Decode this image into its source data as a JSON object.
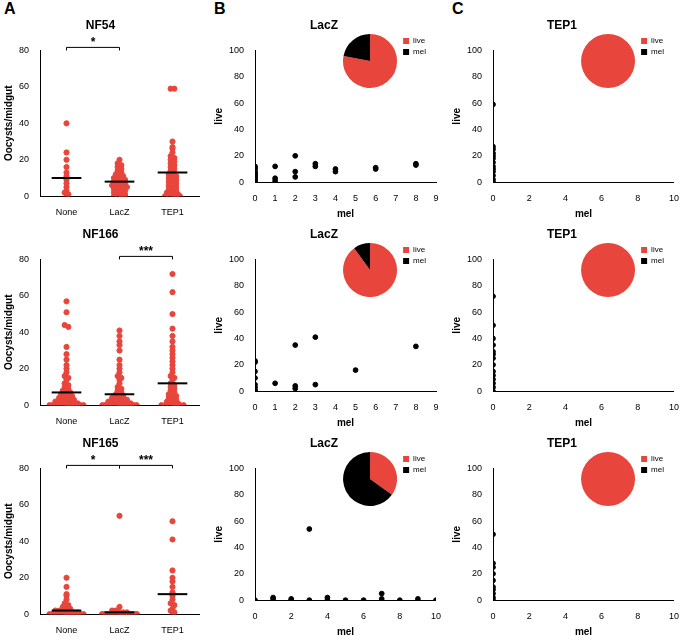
{
  "panel_labels": [
    "A",
    "B",
    "C"
  ],
  "chart_data": [
    {
      "type": "strip",
      "title": "NF54",
      "y_label": "Oocysts/midgut",
      "categories": [
        "None",
        "LacZ",
        "TEP1"
      ],
      "values": [
        [
          40,
          24,
          20,
          16,
          13,
          11,
          9,
          7,
          5,
          3,
          2,
          1,
          0
        ],
        [
          20,
          18,
          17,
          16,
          15,
          14,
          13,
          12,
          12,
          11,
          10,
          10,
          9,
          9,
          8,
          8,
          7,
          7,
          6,
          6,
          5,
          5,
          5,
          4,
          4,
          3,
          3,
          2,
          2,
          1,
          1,
          0,
          0,
          0,
          0
        ],
        [
          59,
          59,
          30,
          27,
          26,
          24,
          22,
          21,
          20,
          19,
          18,
          17,
          16,
          15,
          14,
          13,
          12,
          12,
          11,
          10,
          10,
          9,
          8,
          8,
          7,
          6,
          5,
          5,
          4,
          3,
          3,
          2,
          2,
          1,
          1,
          0,
          0,
          0,
          0,
          0
        ]
      ],
      "means": [
        10,
        8,
        13
      ],
      "color": "#e8453c",
      "ylim": [
        0,
        80
      ],
      "yticks": [
        0,
        20,
        40,
        60,
        80
      ],
      "grid": false,
      "significance": [
        {
          "from": "None",
          "to": "LacZ",
          "label": "*"
        }
      ]
    },
    {
      "type": "scatter",
      "title": "LacZ",
      "x_label": "mel",
      "y_label": "live",
      "x": [
        0,
        0,
        0,
        0,
        0,
        0,
        0,
        0,
        0,
        0,
        0,
        0,
        1,
        1,
        1,
        2,
        2,
        2,
        3,
        3,
        4,
        4,
        6,
        6,
        8,
        8
      ],
      "y": [
        0,
        1,
        2,
        3,
        4,
        5,
        6,
        7,
        8,
        10,
        11,
        12,
        12,
        3,
        1,
        20,
        8,
        4,
        14,
        12,
        10,
        8,
        11,
        10,
        14,
        13
      ],
      "color": "#000000",
      "xlim": [
        0,
        9
      ],
      "xticks": [
        0,
        1,
        2,
        3,
        4,
        5,
        6,
        7,
        8,
        9
      ],
      "ylim": [
        0,
        100
      ],
      "yticks": [
        0,
        20,
        40,
        60,
        80,
        100
      ],
      "grid": false,
      "inset": {
        "type": "pie",
        "categories": [
          "live",
          "mel"
        ],
        "values": [
          78,
          22
        ],
        "colors": [
          "#e8453c",
          "#000000"
        ],
        "legend": "right"
      }
    },
    {
      "type": "scatter",
      "title": "TEP1",
      "x_label": "mel",
      "y_label": "live",
      "x": [
        0,
        0,
        0,
        0,
        0,
        0,
        0,
        0,
        0,
        0,
        0,
        0,
        0
      ],
      "y": [
        0,
        2,
        5,
        8,
        10,
        12,
        15,
        18,
        20,
        22,
        25,
        27,
        59
      ],
      "color": "#000000",
      "xlim": [
        0,
        10
      ],
      "xticks": [
        0,
        2,
        4,
        6,
        8,
        10
      ],
      "ylim": [
        0,
        100
      ],
      "yticks": [
        0,
        20,
        40,
        60,
        80,
        100
      ],
      "grid": false,
      "inset": {
        "type": "pie",
        "categories": [
          "live",
          "mel"
        ],
        "values": [
          100,
          0
        ],
        "colors": [
          "#e8453c",
          "#000000"
        ],
        "legend": "right"
      }
    },
    {
      "type": "strip",
      "title": "NF166",
      "y_label": "Oocysts/midgut",
      "categories": [
        "None",
        "LacZ",
        "TEP1"
      ],
      "values": [
        [
          57,
          51,
          44,
          43,
          32,
          28,
          25,
          22,
          20,
          18,
          16,
          15,
          14,
          12,
          11,
          10,
          9,
          8,
          8,
          7,
          6,
          6,
          5,
          5,
          4,
          4,
          3,
          3,
          3,
          2,
          2,
          2,
          1,
          1,
          1,
          1,
          0,
          0,
          0,
          0,
          0,
          0,
          0,
          0,
          0,
          0,
          0,
          0
        ],
        [
          41,
          38,
          35,
          33,
          30,
          25,
          22,
          20,
          18,
          16,
          15,
          14,
          12,
          10,
          9,
          8,
          7,
          6,
          5,
          5,
          4,
          4,
          3,
          3,
          3,
          2,
          2,
          2,
          1,
          1,
          1,
          1,
          0,
          0,
          0,
          0,
          0,
          0,
          0,
          0,
          0,
          0,
          0,
          0,
          0
        ],
        [
          72,
          62,
          50,
          42,
          38,
          35,
          32,
          30,
          28,
          26,
          24,
          22,
          20,
          18,
          16,
          15,
          14,
          12,
          11,
          10,
          9,
          8,
          7,
          6,
          5,
          5,
          4,
          3,
          3,
          2,
          2,
          1,
          1,
          0,
          0,
          0,
          0,
          0,
          0,
          0
        ]
      ],
      "means": [
        7,
        6,
        12
      ],
      "color": "#e8453c",
      "ylim": [
        0,
        80
      ],
      "yticks": [
        0,
        20,
        40,
        60,
        80
      ],
      "grid": false,
      "significance": [
        {
          "from": "LacZ",
          "to": "TEP1",
          "label": "***"
        }
      ]
    },
    {
      "type": "scatter",
      "title": "LacZ",
      "x_label": "mel",
      "y_label": "live",
      "x": [
        0,
        0,
        0,
        0,
        0,
        0,
        0,
        0,
        1,
        2,
        2,
        2,
        3,
        3,
        5,
        8
      ],
      "y": [
        0,
        1,
        3,
        5,
        10,
        15,
        22,
        23,
        6,
        35,
        2,
        4,
        41,
        5,
        16,
        34
      ],
      "color": "#000000",
      "xlim": [
        0,
        9
      ],
      "xticks": [
        0,
        1,
        2,
        3,
        4,
        5,
        6,
        7,
        8,
        9
      ],
      "ylim": [
        0,
        100
      ],
      "yticks": [
        0,
        20,
        40,
        60,
        80,
        100
      ],
      "grid": false,
      "inset": {
        "type": "pie",
        "categories": [
          "live",
          "mel"
        ],
        "values": [
          90,
          10
        ],
        "colors": [
          "#e8453c",
          "#000000"
        ],
        "legend": "right"
      }
    },
    {
      "type": "scatter",
      "title": "TEP1",
      "x_label": "mel",
      "y_label": "live",
      "x": [
        0,
        0,
        0,
        0,
        0,
        0,
        0,
        0,
        0,
        0,
        0,
        0,
        0,
        0
      ],
      "y": [
        0,
        3,
        6,
        9,
        12,
        15,
        20,
        25,
        28,
        30,
        35,
        40,
        50,
        72
      ],
      "color": "#000000",
      "xlim": [
        0,
        10
      ],
      "xticks": [
        0,
        2,
        4,
        6,
        8,
        10
      ],
      "ylim": [
        0,
        100
      ],
      "yticks": [
        0,
        20,
        40,
        60,
        80,
        100
      ],
      "grid": false,
      "inset": {
        "type": "pie",
        "categories": [
          "live",
          "mel"
        ],
        "values": [
          100,
          0
        ],
        "colors": [
          "#e8453c",
          "#000000"
        ],
        "legend": "right"
      }
    },
    {
      "type": "strip",
      "title": "NF165",
      "y_label": "Oocysts/midgut",
      "categories": [
        "None",
        "LacZ",
        "TEP1"
      ],
      "values": [
        [
          20,
          15,
          11,
          10,
          8,
          6,
          5,
          4,
          3,
          3,
          2,
          2,
          2,
          1,
          1,
          1,
          1,
          0,
          0,
          0,
          0,
          0,
          0,
          0,
          0,
          0,
          0,
          0,
          0,
          0
        ],
        [
          54,
          4,
          2,
          2,
          1,
          1,
          1,
          0,
          0,
          0,
          0,
          0,
          0,
          0,
          0,
          0,
          0,
          0,
          0,
          0,
          0,
          0,
          0,
          0,
          0
        ],
        [
          51,
          41,
          24,
          20,
          18,
          15,
          12,
          10,
          8,
          6,
          5,
          3,
          2,
          1,
          0
        ]
      ],
      "means": [
        2,
        1,
        11
      ],
      "color": "#e8453c",
      "ylim": [
        0,
        80
      ],
      "yticks": [
        0,
        20,
        40,
        60,
        80
      ],
      "grid": false,
      "significance": [
        {
          "from": "None",
          "to": "LacZ",
          "label": "*"
        },
        {
          "from": "LacZ",
          "to": "TEP1",
          "label": "***"
        }
      ]
    },
    {
      "type": "scatter",
      "title": "LacZ",
      "x_label": "mel",
      "y_label": "live",
      "x": [
        0,
        1,
        1,
        2,
        2,
        3,
        3,
        4,
        4,
        5,
        6,
        7,
        7,
        8,
        9,
        10
      ],
      "y": [
        0,
        2,
        1,
        0,
        1,
        54,
        0,
        2,
        0,
        0,
        0,
        5,
        1,
        0,
        1,
        0
      ],
      "color": "#000000",
      "xlim": [
        0,
        10
      ],
      "xticks": [
        0,
        2,
        4,
        6,
        8,
        10
      ],
      "ylim": [
        0,
        100
      ],
      "yticks": [
        0,
        20,
        40,
        60,
        80,
        100
      ],
      "grid": false,
      "inset": {
        "type": "pie",
        "categories": [
          "live",
          "mel"
        ],
        "values": [
          35,
          65
        ],
        "colors": [
          "#e8453c",
          "#000000"
        ],
        "legend": "right"
      }
    },
    {
      "type": "scatter",
      "title": "TEP1",
      "x_label": "mel",
      "y_label": "live",
      "x": [
        0,
        0,
        0,
        0,
        0,
        0,
        0,
        0,
        0,
        0
      ],
      "y": [
        0,
        2,
        5,
        8,
        10,
        15,
        20,
        25,
        28,
        50
      ],
      "color": "#000000",
      "xlim": [
        0,
        10
      ],
      "xticks": [
        0,
        2,
        4,
        6,
        8,
        10
      ],
      "ylim": [
        0,
        100
      ],
      "yticks": [
        0,
        20,
        40,
        60,
        80,
        100
      ],
      "grid": false,
      "inset": {
        "type": "pie",
        "categories": [
          "live",
          "mel"
        ],
        "values": [
          100,
          0
        ],
        "colors": [
          "#e8453c",
          "#000000"
        ],
        "legend": "right"
      }
    }
  ]
}
